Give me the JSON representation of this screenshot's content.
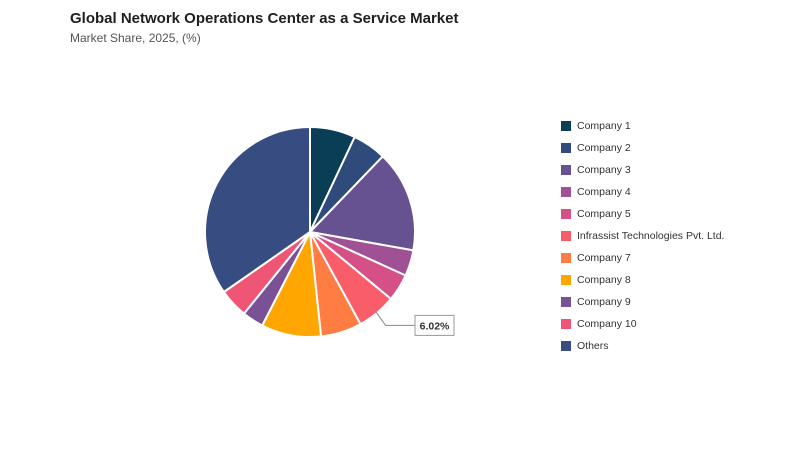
{
  "title": "Global Network Operations Center as a Service Market",
  "subtitle": "Market Share, 2025, (%)",
  "chart_data": {
    "type": "pie",
    "slices": [
      {
        "name": "Company 1",
        "value": 7.0,
        "color": "#0a3d56"
      },
      {
        "name": "Company 2",
        "value": 5.2,
        "color": "#2f4b7c"
      },
      {
        "name": "Company 3",
        "value": 15.6,
        "color": "#665191"
      },
      {
        "name": "Company 4",
        "value": 4.0,
        "color": "#a05195"
      },
      {
        "name": "Company 5",
        "value": 4.2,
        "color": "#d45087"
      },
      {
        "name": "Infrassist Technologies Pvt. Ltd.",
        "value": 6.02,
        "color": "#f95d6a"
      },
      {
        "name": "Company 7",
        "value": 6.3,
        "color": "#ff7c43"
      },
      {
        "name": "Company 8",
        "value": 9.2,
        "color": "#ffa600"
      },
      {
        "name": "Company 9",
        "value": 3.3,
        "color": "#7a5195"
      },
      {
        "name": "Company 10",
        "value": 4.5,
        "color": "#ef5675"
      },
      {
        "name": "Others",
        "value": 34.68,
        "color": "#374c80"
      }
    ],
    "annotation": {
      "label": "6.02%",
      "slice": "Infrassist Technologies Pvt. Ltd."
    }
  }
}
